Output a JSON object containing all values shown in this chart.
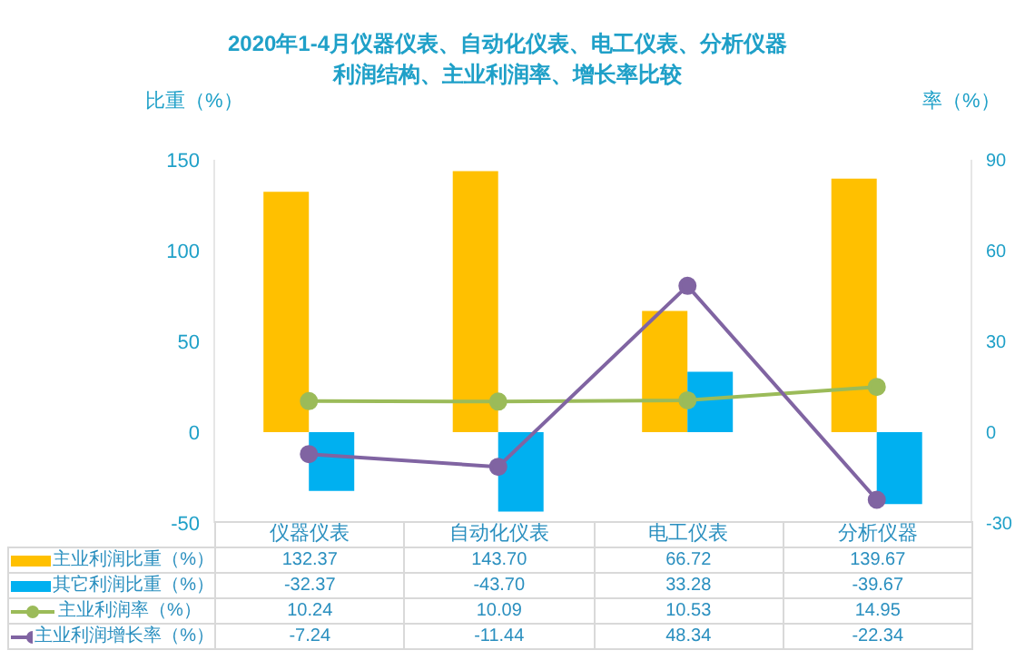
{
  "chart_data": {
    "type": "bar",
    "title": "2020年1-4月仪器仪表、自动化仪表、电工仪表、分析仪器",
    "subtitle": "利润结构、主业利润率、增长率比较",
    "categories": [
      "仪器仪表",
      "自动化仪表",
      "电工仪表",
      "分析仪器"
    ],
    "series": [
      {
        "name": "主业利润比重（%）",
        "color": "#ffc000",
        "values": [
          132.37,
          143.7,
          66.72,
          139.67
        ],
        "value_labels": [
          "132.37",
          "143.70",
          "66.72",
          "139.67"
        ]
      },
      {
        "name": "其它利润比重（%）",
        "color": "#00b0f0",
        "values": [
          -32.37,
          -43.7,
          33.28,
          -39.67
        ],
        "value_labels": [
          "-32.37",
          "-43.70",
          "33.28",
          "-39.67"
        ]
      },
      {
        "name": "主业利润率（%）",
        "type": "line",
        "axis": "y2",
        "color": "#9bbb59",
        "values": [
          10.24,
          10.09,
          10.53,
          14.95
        ],
        "value_labels": [
          "10.24",
          "10.09",
          "10.53",
          "14.95"
        ]
      },
      {
        "name": "主业利润增长率（%）",
        "type": "line",
        "axis": "y2",
        "color": "#8064a2",
        "values": [
          -7.24,
          -11.44,
          48.34,
          -22.34
        ],
        "value_labels": [
          "-7.24",
          "-11.44",
          "48.34",
          "-22.34"
        ]
      }
    ],
    "ylabel": "比重（%）",
    "y2label": "率（%）",
    "ylim": [
      -50,
      150
    ],
    "yticks": [
      -50,
      0,
      50,
      100,
      150
    ],
    "y2lim": [
      -30,
      90
    ],
    "y2ticks": [
      -30,
      0,
      30,
      60,
      90
    ],
    "marker": "circle",
    "legend": "bottom"
  }
}
